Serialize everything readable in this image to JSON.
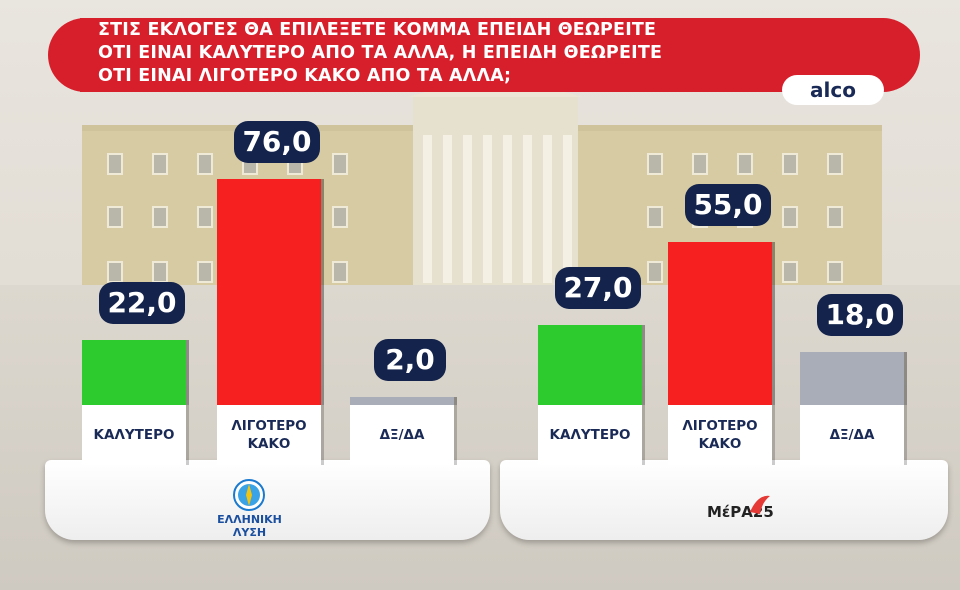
{
  "title": "ΣΤΙΣ ΕΚΛΟΓΕΣ ΘΑ ΕΠΙΛΕΞΕΤΕ ΚΟΜΜΑ ΕΠΕΙΔΗ ΘΕΩΡΕΙΤΕ\nΟΤΙ ΕΙΝΑΙ ΚΑΛΥΤΕΡΟ ΑΠΟ ΤΑ ΑΛΛΑ, Η ΕΠΕΙΔΗ ΘΕΩΡΕΙΤΕ\nΟΤΙ ΕΙΝΑΙ ΛΙΓΟΤΕΡΟ ΚΑΚΟ ΑΠΟ ΤΑ ΑΛΛΑ;",
  "source": "alco",
  "colors": {
    "banner": "#d71e2b",
    "badge": "#14234b",
    "better": "#2ecb2e",
    "lesser_evil": "#f5201f",
    "dk_na": "#a9adb8"
  },
  "parties": [
    {
      "logo_icon": "elliniki-lysi-logo",
      "logo_text_line1": "ΕΛΛΗΝΙΚΗ",
      "logo_text_line2": "ΛΥΣΗ"
    },
    {
      "logo_icon": "mera25-logo",
      "logo_text": "ΜέΡΑ25"
    }
  ],
  "chart_data": [
    {
      "type": "bar",
      "categories": [
        "ΚΑΛΥΤΕΡΟ",
        "ΛΙΓΟΤΕΡΟ\nΚΑΚΟ",
        "ΔΞ/ΔΑ"
      ],
      "values": [
        22.0,
        76.0,
        2.0
      ],
      "value_labels": [
        "22,0",
        "76,0",
        "2,0"
      ],
      "colors": [
        "#2ecb2e",
        "#f5201f",
        "#a9adb8"
      ]
    },
    {
      "type": "bar",
      "categories": [
        "ΚΑΛΥΤΕΡΟ",
        "ΛΙΓΟΤΕΡΟ\nΚΑΚΟ",
        "ΔΞ/ΔΑ"
      ],
      "values": [
        27.0,
        55.0,
        18.0
      ],
      "value_labels": [
        "27,0",
        "55,0",
        "18,0"
      ],
      "colors": [
        "#2ecb2e",
        "#f5201f",
        "#a9adb8"
      ]
    }
  ]
}
